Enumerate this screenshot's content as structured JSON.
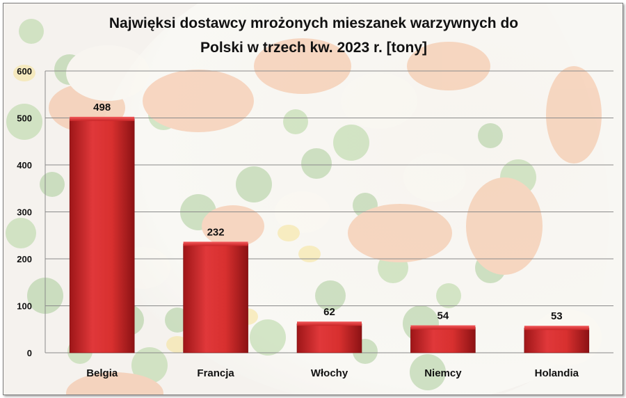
{
  "chart_data": {
    "type": "bar",
    "title_lines": [
      "Najwięksi dostawcy mrożonych mieszanek warzywnych do",
      "Polski w trzech kw. 2023 r. [tony]"
    ],
    "categories": [
      "Belgia",
      "Francja",
      "Włochy",
      "Niemcy",
      "Holandia"
    ],
    "values": [
      498,
      232,
      62,
      54,
      53
    ],
    "ylim": [
      0,
      600
    ],
    "yticks": [
      0,
      100,
      200,
      300,
      400,
      500,
      600
    ],
    "grid": true,
    "legend": "none",
    "bar_color": "#d0282b"
  },
  "background_image": "frozen-mixed-vegetables-bowl"
}
